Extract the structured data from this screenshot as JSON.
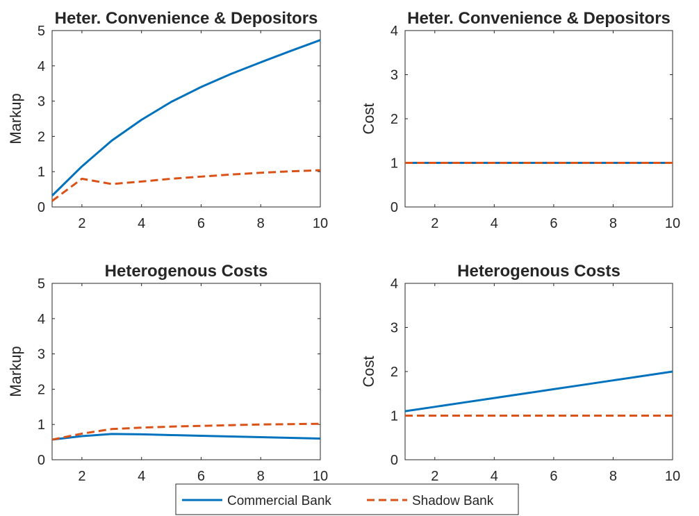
{
  "colors": {
    "commercial": "#0072BD",
    "shadow": "#D95319",
    "axis": "#262626"
  },
  "legend": {
    "placement": "bottom-center",
    "entries": [
      {
        "label": "Commercial Bank",
        "color": "#0072BD",
        "style": "solid"
      },
      {
        "label": "Shadow Bank",
        "color": "#D95319",
        "style": "dashed"
      }
    ]
  },
  "chart_data": [
    {
      "type": "line",
      "title": "Heter. Convenience & Depositors",
      "xlabel": "",
      "ylabel": "Markup",
      "xlim": [
        1,
        10
      ],
      "ylim": [
        0,
        5
      ],
      "xticks": [
        2,
        4,
        6,
        8,
        10
      ],
      "yticks": [
        0,
        1,
        2,
        3,
        4,
        5
      ],
      "x": [
        1,
        2,
        3,
        4,
        5,
        6,
        7,
        8,
        9,
        10
      ],
      "series": [
        {
          "name": "Commercial Bank",
          "color": "#0072BD",
          "style": "solid",
          "values": [
            0.32,
            1.15,
            1.88,
            2.47,
            2.98,
            3.4,
            3.77,
            4.1,
            4.42,
            4.73
          ]
        },
        {
          "name": "Shadow Bank",
          "color": "#D95319",
          "style": "dashed",
          "values": [
            0.17,
            0.8,
            0.65,
            0.72,
            0.8,
            0.86,
            0.92,
            0.97,
            1.01,
            1.04
          ]
        }
      ]
    },
    {
      "type": "line",
      "title": "Heter. Convenience & Depositors",
      "xlabel": "",
      "ylabel": "Cost",
      "xlim": [
        1,
        10
      ],
      "ylim": [
        0,
        4
      ],
      "xticks": [
        2,
        4,
        6,
        8,
        10
      ],
      "yticks": [
        0,
        1,
        2,
        3,
        4
      ],
      "x": [
        1,
        2,
        3,
        4,
        5,
        6,
        7,
        8,
        9,
        10
      ],
      "series": [
        {
          "name": "Commercial Bank",
          "color": "#0072BD",
          "style": "solid",
          "values": [
            1,
            1,
            1,
            1,
            1,
            1,
            1,
            1,
            1,
            1
          ]
        },
        {
          "name": "Shadow Bank",
          "color": "#D95319",
          "style": "dashed",
          "values": [
            1,
            1,
            1,
            1,
            1,
            1,
            1,
            1,
            1,
            1
          ]
        }
      ]
    },
    {
      "type": "line",
      "title": "Heterogenous Costs",
      "xlabel": "",
      "ylabel": "Markup",
      "xlim": [
        1,
        10
      ],
      "ylim": [
        0,
        5
      ],
      "xticks": [
        2,
        4,
        6,
        8,
        10
      ],
      "yticks": [
        0,
        1,
        2,
        3,
        4,
        5
      ],
      "x": [
        1,
        2,
        3,
        4,
        5,
        6,
        7,
        8,
        9,
        10
      ],
      "series": [
        {
          "name": "Commercial Bank",
          "color": "#0072BD",
          "style": "solid",
          "values": [
            0.57,
            0.67,
            0.73,
            0.72,
            0.7,
            0.68,
            0.66,
            0.64,
            0.62,
            0.6
          ]
        },
        {
          "name": "Shadow Bank",
          "color": "#D95319",
          "style": "dashed",
          "values": [
            0.57,
            0.74,
            0.87,
            0.91,
            0.94,
            0.96,
            0.98,
            1.0,
            1.01,
            1.02
          ]
        }
      ]
    },
    {
      "type": "line",
      "title": "Heterogenous Costs",
      "xlabel": "",
      "ylabel": "Cost",
      "xlim": [
        1,
        10
      ],
      "ylim": [
        0,
        4
      ],
      "xticks": [
        2,
        4,
        6,
        8,
        10
      ],
      "yticks": [
        0,
        1,
        2,
        3,
        4
      ],
      "x": [
        1,
        2,
        3,
        4,
        5,
        6,
        7,
        8,
        9,
        10
      ],
      "series": [
        {
          "name": "Commercial Bank",
          "color": "#0072BD",
          "style": "solid",
          "values": [
            1.1,
            1.2,
            1.3,
            1.4,
            1.5,
            1.6,
            1.7,
            1.8,
            1.9,
            2.0
          ]
        },
        {
          "name": "Shadow Bank",
          "color": "#D95319",
          "style": "dashed",
          "values": [
            1,
            1,
            1,
            1,
            1,
            1,
            1,
            1,
            1,
            1
          ]
        }
      ]
    }
  ]
}
